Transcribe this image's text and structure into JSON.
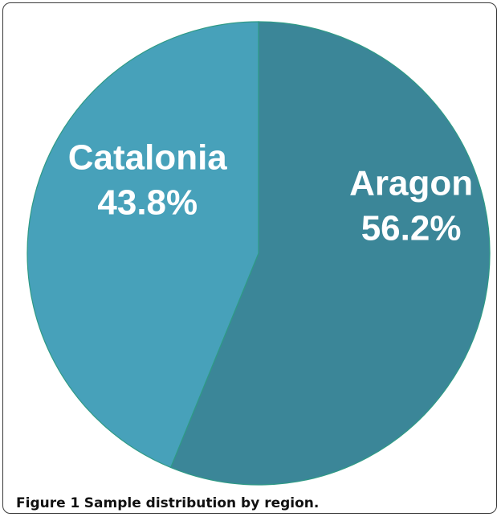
{
  "chart_data": {
    "type": "pie",
    "slices": [
      {
        "name": "Aragon",
        "value": 56.2,
        "label": "56.2%",
        "color": "#3b8698"
      },
      {
        "name": "Catalonia",
        "value": 43.8,
        "label": "43.8%",
        "color": "#47a1ba"
      }
    ],
    "edge_color": "#2f9a86"
  },
  "caption": {
    "number": "Figure 1",
    "text": "Sample distribution by region."
  }
}
